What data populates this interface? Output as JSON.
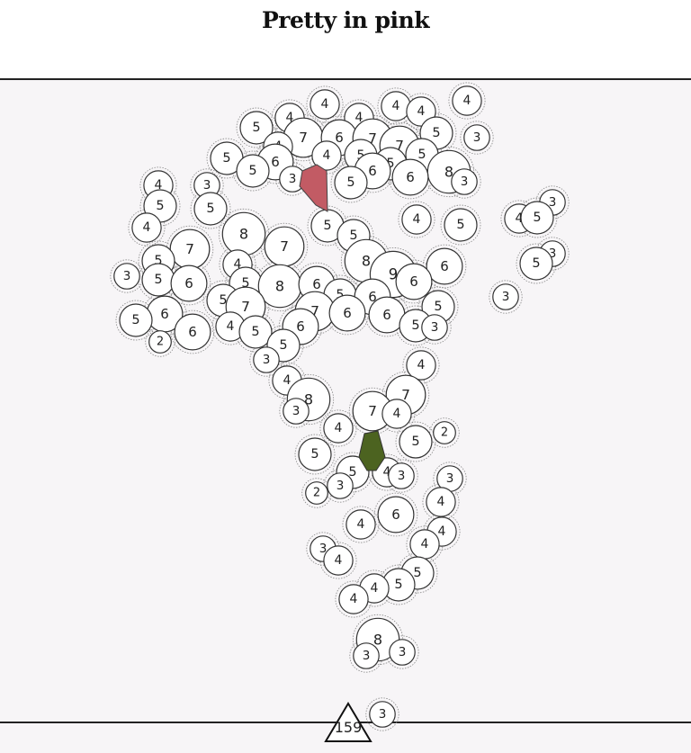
{
  "title": "Pretty in pink",
  "counter": {
    "value": "159"
  },
  "colors": {
    "background": "#f7f5f7",
    "bubble_fill": "#ffffff",
    "bubble_stroke": "#333333",
    "halo_stroke": "#888888",
    "pink_piece": "#c25b64",
    "green_piece": "#4c6320"
  },
  "bubbles": [
    [
      519,
      112,
      4
    ],
    [
      361,
      116,
      4
    ],
    [
      440,
      118,
      4
    ],
    [
      468,
      124,
      4
    ],
    [
      322,
      131,
      4
    ],
    [
      399,
      131,
      4
    ],
    [
      285,
      142,
      5
    ],
    [
      485,
      148,
      5
    ],
    [
      530,
      153,
      3
    ],
    [
      337,
      153,
      7
    ],
    [
      377,
      153,
      6
    ],
    [
      414,
      154,
      7
    ],
    [
      444,
      162,
      7
    ],
    [
      309,
      163,
      4
    ],
    [
      306,
      180,
      6
    ],
    [
      363,
      173,
      4
    ],
    [
      401,
      173,
      5
    ],
    [
      469,
      172,
      5
    ],
    [
      252,
      176,
      5
    ],
    [
      434,
      182,
      5
    ],
    [
      414,
      190,
      6
    ],
    [
      499,
      191,
      8
    ],
    [
      281,
      190,
      5
    ],
    [
      456,
      197,
      6
    ],
    [
      325,
      199,
      3
    ],
    [
      390,
      203,
      5
    ],
    [
      516,
      202,
      3
    ],
    [
      176,
      206,
      4
    ],
    [
      230,
      206,
      3
    ],
    [
      178,
      229,
      5
    ],
    [
      234,
      232,
      5
    ],
    [
      614,
      225,
      3
    ],
    [
      577,
      243,
      4
    ],
    [
      597,
      242,
      5
    ],
    [
      463,
      244,
      4
    ],
    [
      512,
      250,
      5
    ],
    [
      364,
      251,
      5
    ],
    [
      163,
      253,
      4
    ],
    [
      393,
      262,
      5
    ],
    [
      271,
      260,
      8
    ],
    [
      316,
      274,
      7
    ],
    [
      211,
      277,
      7
    ],
    [
      614,
      282,
      3
    ],
    [
      596,
      293,
      5
    ],
    [
      407,
      290,
      8
    ],
    [
      494,
      296,
      6
    ],
    [
      176,
      290,
      5
    ],
    [
      264,
      294,
      4
    ],
    [
      437,
      305,
      9
    ],
    [
      141,
      307,
      3
    ],
    [
      176,
      311,
      5
    ],
    [
      210,
      315,
      6
    ],
    [
      273,
      315,
      5
    ],
    [
      311,
      318,
      8
    ],
    [
      352,
      316,
      6
    ],
    [
      460,
      313,
      6
    ],
    [
      562,
      330,
      3
    ],
    [
      378,
      328,
      5
    ],
    [
      414,
      330,
      6
    ],
    [
      248,
      334,
      5
    ],
    [
      487,
      341,
      5
    ],
    [
      273,
      341,
      7
    ],
    [
      350,
      346,
      7
    ],
    [
      386,
      348,
      6
    ],
    [
      183,
      349,
      6
    ],
    [
      151,
      356,
      5
    ],
    [
      430,
      350,
      6
    ],
    [
      462,
      362,
      5
    ],
    [
      483,
      364,
      3
    ],
    [
      334,
      363,
      6
    ],
    [
      256,
      363,
      4
    ],
    [
      284,
      369,
      5
    ],
    [
      214,
      369,
      6
    ],
    [
      178,
      380,
      2
    ],
    [
      315,
      384,
      5
    ],
    [
      296,
      400,
      3
    ],
    [
      468,
      406,
      4
    ],
    [
      319,
      423,
      4
    ],
    [
      451,
      439,
      7
    ],
    [
      343,
      444,
      8
    ],
    [
      329,
      457,
      3
    ],
    [
      414,
      457,
      7
    ],
    [
      441,
      460,
      4
    ],
    [
      376,
      476,
      4
    ],
    [
      494,
      481,
      2
    ],
    [
      462,
      491,
      5
    ],
    [
      350,
      505,
      5
    ],
    [
      392,
      525,
      5
    ],
    [
      430,
      525,
      4
    ],
    [
      446,
      529,
      3
    ],
    [
      500,
      532,
      3
    ],
    [
      378,
      540,
      3
    ],
    [
      352,
      548,
      2
    ],
    [
      490,
      558,
      4
    ],
    [
      440,
      572,
      6
    ],
    [
      401,
      583,
      4
    ],
    [
      491,
      591,
      4
    ],
    [
      472,
      605,
      4
    ],
    [
      359,
      610,
      3
    ],
    [
      376,
      623,
      4
    ],
    [
      464,
      637,
      5
    ],
    [
      443,
      650,
      5
    ],
    [
      416,
      654,
      4
    ],
    [
      393,
      666,
      4
    ],
    [
      420,
      711,
      8
    ],
    [
      447,
      725,
      3
    ],
    [
      407,
      729,
      3
    ],
    [
      425,
      794,
      3
    ]
  ]
}
